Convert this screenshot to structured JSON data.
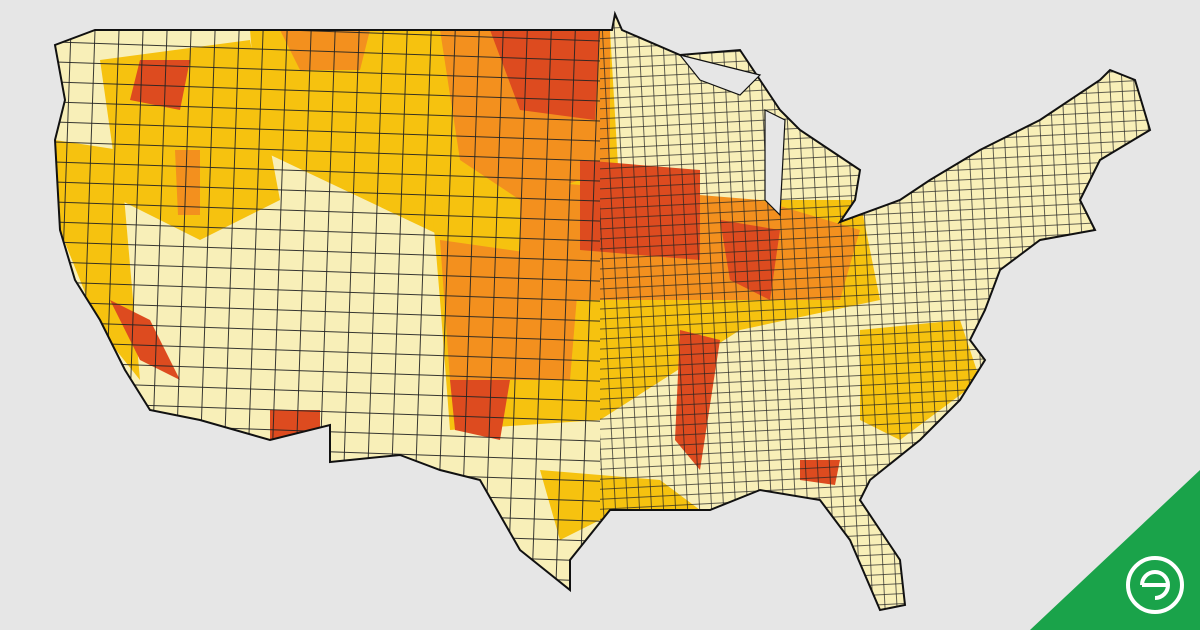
{
  "map": {
    "palette": [
      "#f8efb8",
      "#f6c20f",
      "#f3901e",
      "#dd4b1f"
    ]
  }
}
